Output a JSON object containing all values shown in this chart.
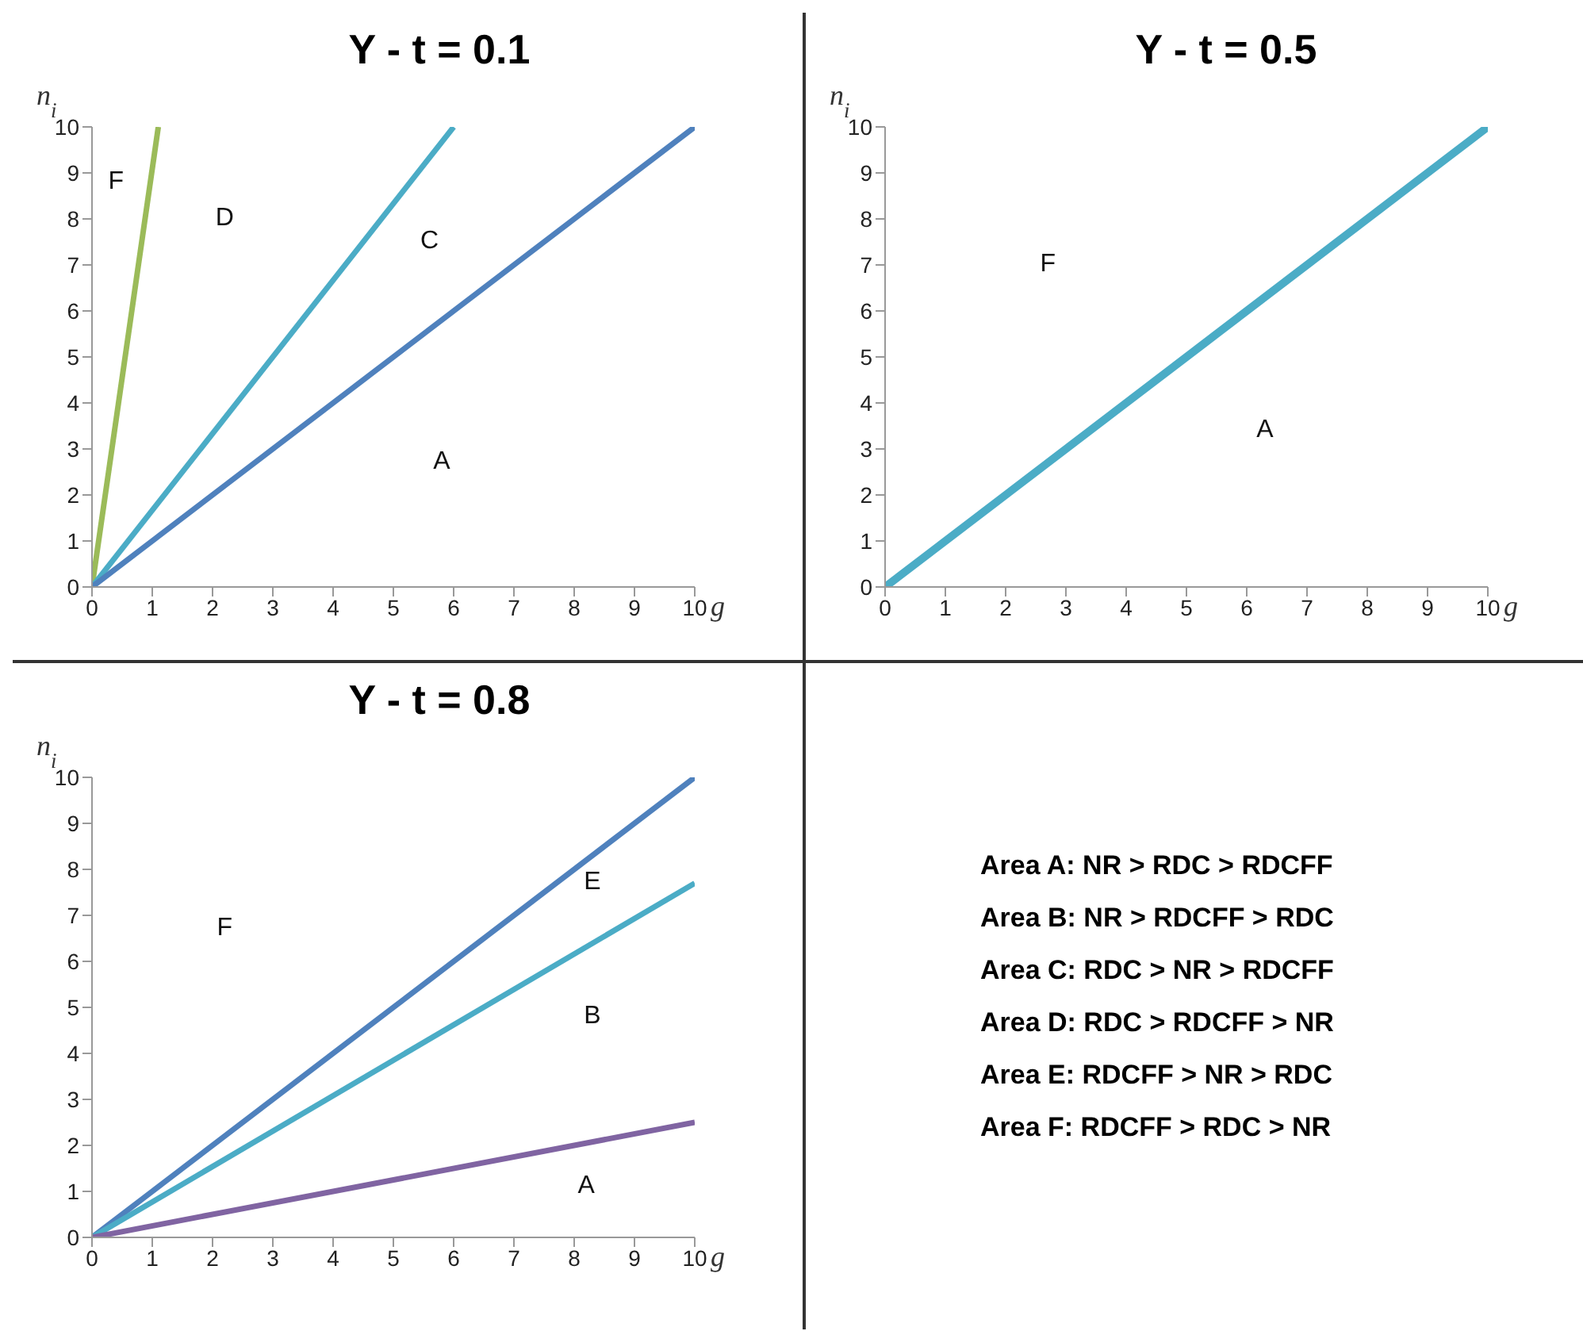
{
  "chart_data": [
    {
      "type": "line",
      "title": "Y - t = 0.1",
      "xlabel": "g",
      "ylabel": "n$_{i}$",
      "xlim": [
        0,
        10
      ],
      "ylim": [
        0,
        10
      ],
      "xticks": [
        0,
        1,
        2,
        3,
        4,
        5,
        6,
        7,
        8,
        9,
        10
      ],
      "yticks": [
        0,
        1,
        2,
        3,
        4,
        5,
        6,
        7,
        8,
        9,
        10
      ],
      "grid": false,
      "legend": false,
      "marker": "none",
      "line_style": "solid",
      "series": [
        {
          "color": "#9bbb59",
          "x": [
            0,
            1.1
          ],
          "values": [
            0,
            10
          ]
        },
        {
          "color": "#4bacc6",
          "x": [
            0,
            6
          ],
          "values": [
            0,
            10
          ]
        },
        {
          "color": "#4f81bd",
          "x": [
            0,
            10
          ],
          "values": [
            0,
            10
          ]
        }
      ],
      "annotations": [
        "F",
        "D",
        "C",
        "A"
      ]
    },
    {
      "type": "line",
      "title": "Y - t = 0.5",
      "xlabel": "g",
      "ylabel": "n$_{i}$",
      "xlim": [
        0,
        10
      ],
      "ylim": [
        0,
        10
      ],
      "xticks": [
        0,
        1,
        2,
        3,
        4,
        5,
        6,
        7,
        8,
        9,
        10
      ],
      "yticks": [
        0,
        1,
        2,
        3,
        4,
        5,
        6,
        7,
        8,
        9,
        10
      ],
      "grid": false,
      "legend": false,
      "marker": "none",
      "line_style": "solid",
      "series": [
        {
          "color": "#4bacc6",
          "x": [
            0,
            10
          ],
          "values": [
            0,
            10
          ]
        }
      ],
      "annotations": [
        "F",
        "A"
      ]
    },
    {
      "type": "line",
      "title": "Y - t = 0.8",
      "xlabel": "g",
      "ylabel": "n$_{i}$",
      "xlim": [
        0,
        10
      ],
      "ylim": [
        0,
        10
      ],
      "xticks": [
        0,
        1,
        2,
        3,
        4,
        5,
        6,
        7,
        8,
        9,
        10
      ],
      "yticks": [
        0,
        1,
        2,
        3,
        4,
        5,
        6,
        7,
        8,
        9,
        10
      ],
      "grid": false,
      "legend": false,
      "marker": "none",
      "line_style": "solid",
      "series": [
        {
          "color": "#4f81bd",
          "x": [
            0,
            10
          ],
          "values": [
            0,
            10
          ]
        },
        {
          "color": "#4bacc6",
          "x": [
            0,
            10
          ],
          "values": [
            0,
            7.7
          ]
        },
        {
          "color": "#8064a2",
          "x": [
            0,
            10
          ],
          "values": [
            0,
            2.5
          ]
        }
      ],
      "annotations": [
        "F",
        "E",
        "B",
        "A"
      ]
    },
    {
      "type": "other",
      "annotations": [
        "Area A: NR > RDC > RDCFF",
        "Area B: NR > RDCFF > RDC",
        "Area C: RDC > NR > RDCFF",
        "Area D: RDC > RDCFF > NR",
        "Area E: RDCFF > NR > RDC",
        "Area F: RDCFF > RDC > NR"
      ]
    }
  ]
}
